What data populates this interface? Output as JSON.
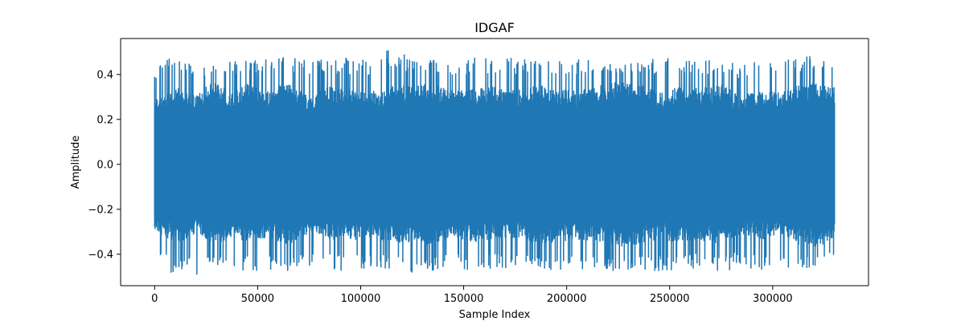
{
  "chart_data": {
    "type": "line",
    "title": "IDGAF",
    "xlabel": "Sample Index",
    "ylabel": "Amplitude",
    "xlim": [
      -16500,
      346500
    ],
    "ylim": [
      -0.54,
      0.56
    ],
    "xticks": [
      0,
      50000,
      100000,
      150000,
      200000,
      250000,
      300000
    ],
    "xtick_labels": [
      "0",
      "50000",
      "100000",
      "150000",
      "200000",
      "250000",
      "300000"
    ],
    "yticks": [
      -0.4,
      -0.2,
      0.0,
      0.2,
      0.4
    ],
    "ytick_labels": [
      "−0.4",
      "−0.2",
      "0.0",
      "0.2",
      "0.4"
    ],
    "grid": false,
    "legend": "none",
    "series": [
      {
        "color": "#1f77b4",
        "x_range": [
          0,
          330000
        ],
        "envelope": {
          "x": [
            0,
            6000,
            12000,
            20000,
            28000,
            36000,
            45000,
            55000,
            65000,
            75000,
            85000,
            95000,
            105000,
            115000,
            125000,
            135000,
            145000,
            155000,
            165000,
            175000,
            185000,
            195000,
            205000,
            215000,
            225000,
            235000,
            245000,
            255000,
            265000,
            275000,
            285000,
            295000,
            305000,
            312000,
            320000,
            330000
          ],
          "max": [
            0.42,
            0.47,
            0.48,
            0.44,
            0.47,
            0.46,
            0.48,
            0.47,
            0.48,
            0.46,
            0.47,
            0.48,
            0.46,
            0.52,
            0.47,
            0.48,
            0.46,
            0.48,
            0.47,
            0.48,
            0.46,
            0.46,
            0.47,
            0.47,
            0.44,
            0.46,
            0.48,
            0.47,
            0.46,
            0.47,
            0.45,
            0.46,
            0.48,
            0.47,
            0.49,
            0.43
          ],
          "min": [
            -0.42,
            -0.49,
            -0.47,
            -0.51,
            -0.46,
            -0.47,
            -0.48,
            -0.47,
            -0.48,
            -0.46,
            -0.47,
            -0.48,
            -0.46,
            -0.47,
            -0.49,
            -0.48,
            -0.47,
            -0.48,
            -0.47,
            -0.46,
            -0.48,
            -0.47,
            -0.47,
            -0.46,
            -0.48,
            -0.47,
            -0.48,
            -0.47,
            -0.46,
            -0.48,
            -0.46,
            -0.47,
            -0.48,
            -0.47,
            -0.47,
            -0.43
          ],
          "typical_max": [
            0.28,
            0.3,
            0.35,
            0.3,
            0.36,
            0.32,
            0.35,
            0.32,
            0.36,
            0.3,
            0.34,
            0.32,
            0.32,
            0.34,
            0.35,
            0.35,
            0.32,
            0.33,
            0.34,
            0.32,
            0.35,
            0.34,
            0.32,
            0.34,
            0.36,
            0.35,
            0.32,
            0.34,
            0.33,
            0.35,
            0.3,
            0.33,
            0.32,
            0.35,
            0.36,
            0.34
          ],
          "typical_min": [
            -0.3,
            -0.32,
            -0.34,
            -0.3,
            -0.35,
            -0.33,
            -0.34,
            -0.32,
            -0.35,
            -0.3,
            -0.33,
            -0.33,
            -0.32,
            -0.34,
            -0.35,
            -0.35,
            -0.32,
            -0.34,
            -0.33,
            -0.32,
            -0.35,
            -0.34,
            -0.33,
            -0.34,
            -0.36,
            -0.35,
            -0.33,
            -0.34,
            -0.33,
            -0.35,
            -0.3,
            -0.33,
            -0.32,
            -0.35,
            -0.36,
            -0.34
          ]
        }
      }
    ]
  }
}
